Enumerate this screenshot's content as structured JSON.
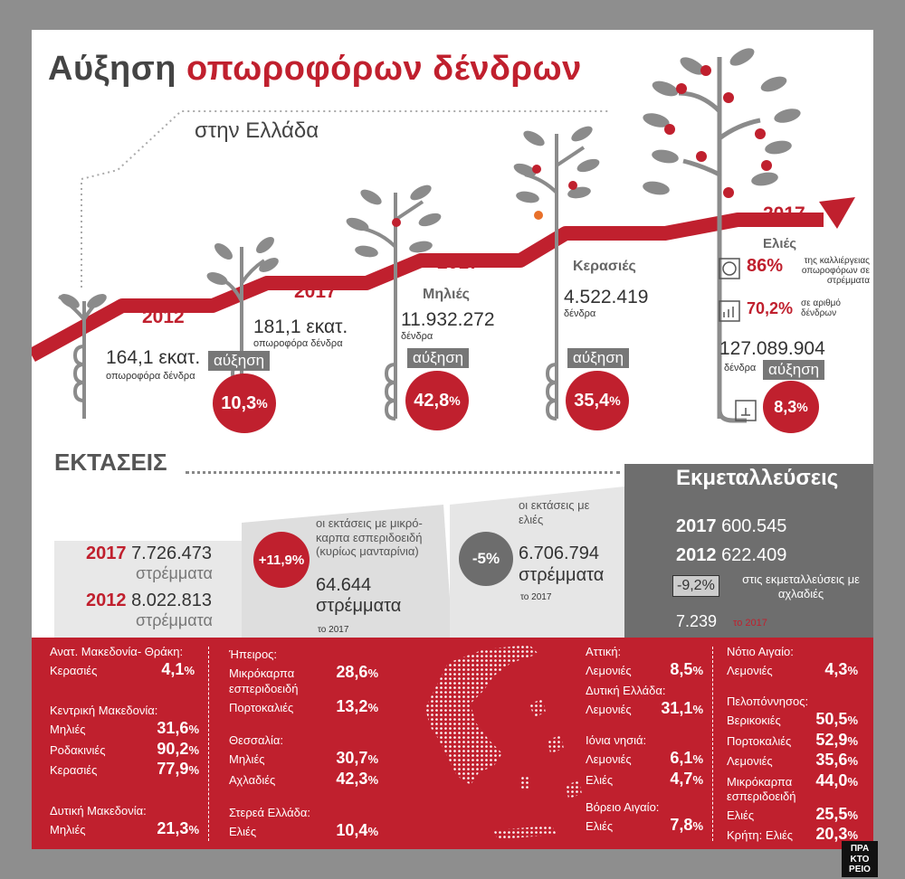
{
  "title": {
    "part1": "Αύξηση",
    "part2": "οπωροφόρων δένδρων"
  },
  "subtitle": "στην Ελλάδα",
  "stages": {
    "s2012": {
      "year": "2012",
      "value": "164,1 εκατ.",
      "caption": "οπωροφόρα δένδρα"
    },
    "s2017": {
      "year": "2017",
      "value": "181,1 εκατ.",
      "caption": "οπωροφόρα δένδρα",
      "tag": "αύξηση",
      "pct": "10,3",
      "pct_unit": "%"
    },
    "apples": {
      "year": "2017",
      "name": "Μηλιές",
      "value": "11.932.272",
      "caption": "δένδρα",
      "tag": "αύξηση",
      "pct": "42,8",
      "pct_unit": "%"
    },
    "cherries": {
      "year": "2017",
      "name": "Κερασιές",
      "value": "4.522.419",
      "caption": "δένδρα",
      "tag": "αύξηση",
      "pct": "35,4",
      "pct_unit": "%"
    },
    "olives": {
      "year": "2017",
      "name": "Ελιές",
      "value": "127.089.904",
      "caption": "δένδρα",
      "tag": "αύξηση",
      "pct": "8,3",
      "pct_unit": "%",
      "stat1_pct": "86%",
      "stat1_text": "της καλλιέργειας οπωροφόρων σε στρέμματα",
      "stat2_pct": "70,2%",
      "stat2_text": "σε αριθμό δένδρων"
    }
  },
  "areas": {
    "heading": "ΕΚΤΑΣΕΙΣ",
    "y2017": "2017",
    "v2017": "7.726.473",
    "u2017": "στρέμματα",
    "y2012": "2012",
    "v2012": "8.022.813",
    "u2012": "στρέμματα",
    "citrus_pct": "+11,9%",
    "citrus_text": "οι εκτάσεις με μικρό-καρπα εσπεριδοειδή (κυρίως μανταρίνια)",
    "citrus_value": "64.644",
    "citrus_unit": "στρέμματα",
    "citrus_year": "το 2017",
    "olive_pct": "-5%",
    "olive_text": "οι εκτάσεις με ελιές",
    "olive_value": "6.706.794",
    "olive_unit": "στρέμματα",
    "olive_year": "το 2017"
  },
  "farms": {
    "heading": "Εκμεταλλεύσεις",
    "y2017": "2017",
    "v2017": "600.545",
    "y2012": "2012",
    "v2012": "622.409",
    "pear_pct": "-9,2%",
    "pear_text": "στις εκμεταλλεύσεις με αχλαδιές",
    "pear_value": "7.239",
    "pear_year": "το 2017"
  },
  "regions": {
    "amth": {
      "name": "Ανατ. Μακεδονία- Θράκη:",
      "rows": [
        [
          "Κερασιές",
          "4,1"
        ]
      ]
    },
    "kmak": {
      "name": "Κεντρική Μακεδονία:",
      "rows": [
        [
          "Μηλιές",
          "31,6"
        ],
        [
          "Ροδακινιές",
          "90,2"
        ],
        [
          "Κερασιές",
          "77,9"
        ]
      ]
    },
    "dmak": {
      "name": "Δυτική Μακεδονία:",
      "rows": [
        [
          "Μηλιές",
          "21,3"
        ]
      ]
    },
    "ipeiros": {
      "name": "Ήπειρος:",
      "rows": [
        [
          "Μικρόκαρπα εσπεριδοειδή",
          "28,6"
        ],
        [
          "Πορτοκαλιές",
          "13,2"
        ]
      ]
    },
    "thessalia": {
      "name": "Θεσσαλία:",
      "rows": [
        [
          "Μηλιές",
          "30,7"
        ],
        [
          "Αχλαδιές",
          "42,3"
        ]
      ]
    },
    "sterea": {
      "name": "Στερεά Ελλάδα:",
      "rows": [
        [
          "Ελιές",
          "10,4"
        ]
      ]
    },
    "attiki": {
      "name": "Αττική:",
      "rows": [
        [
          "Λεμονιές",
          "8,5"
        ]
      ]
    },
    "delllada": {
      "name": "Δυτική Ελλάδα:",
      "rows": [
        [
          "Λεμονιές",
          "31,1"
        ]
      ]
    },
    "ionia": {
      "name": "Ιόνια νησιά:",
      "rows": [
        [
          "Λεμονιές",
          "6,1"
        ],
        [
          "Ελιές",
          "4,7"
        ]
      ]
    },
    "vaigaio": {
      "name": "Βόρειο Αιγαίο:",
      "rows": [
        [
          "Ελιές",
          "7,8"
        ]
      ]
    },
    "naigaio": {
      "name": "Νότιο Αιγαίο:",
      "rows": [
        [
          "Λεμονιές",
          "4,3"
        ]
      ]
    },
    "pelop": {
      "name": "Πελοπόννησος:",
      "rows": [
        [
          "Βερικοκιές",
          "50,5"
        ],
        [
          "Πορτοκαλιές",
          "52,9"
        ],
        [
          "Λεμονιές",
          "35,6"
        ],
        [
          "Μικρόκαρπα εσπεριδοειδή",
          "44,0"
        ],
        [
          "Ελιές",
          "25,5"
        ]
      ]
    },
    "kriti": {
      "name": "Κρήτη:",
      "rows": [
        [
          "Ελιές",
          "20,3"
        ]
      ]
    },
    "pct_unit": "%"
  },
  "logo": {
    "line1": "ΠΡΑ",
    "line2": "ΚΤΟ",
    "line3": "ΡΕΙΟ"
  },
  "colors": {
    "accent": "#c0202e",
    "gray": "#6d6d6d",
    "panel": "#e6e6e6"
  }
}
